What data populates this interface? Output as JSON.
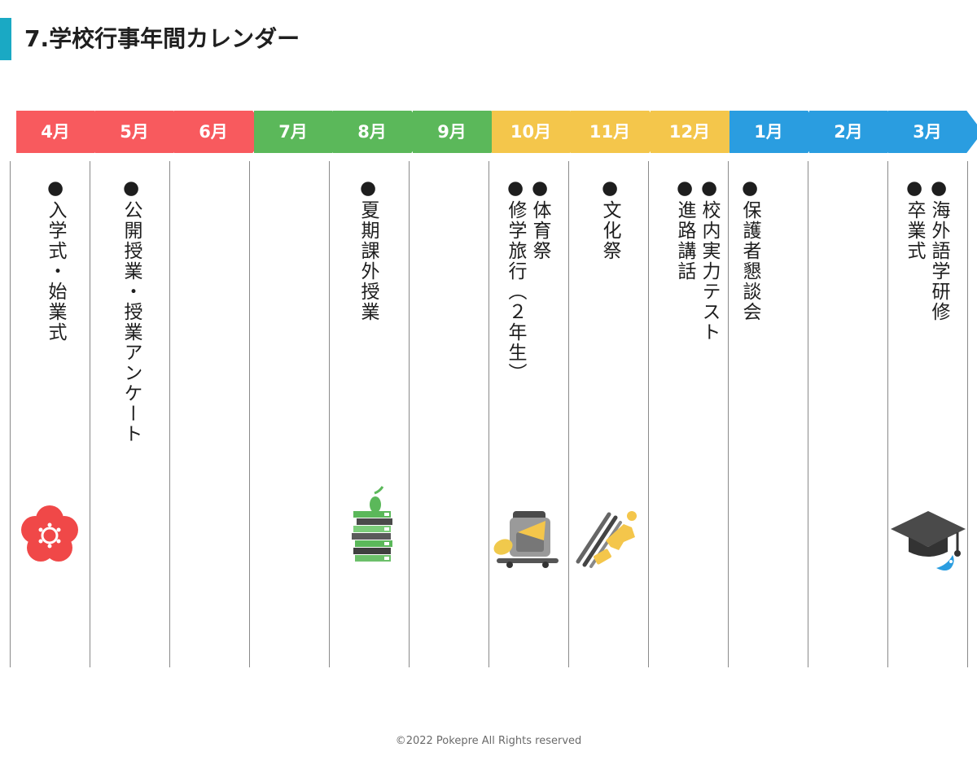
{
  "page": {
    "title": "7.学校行事年間カレンダー",
    "copyright": "©2022 Pokepre All Rights reserved"
  },
  "colors": {
    "accent_bar": "#1aa9c4",
    "spring": "#f85a5e",
    "summer": "#5bb85a",
    "autumn": "#f4c64b",
    "winter": "#2a9de0"
  },
  "months": [
    {
      "label": "4月",
      "color": "red"
    },
    {
      "label": "5月",
      "color": "red"
    },
    {
      "label": "6月",
      "color": "red"
    },
    {
      "label": "7月",
      "color": "green"
    },
    {
      "label": "8月",
      "color": "green"
    },
    {
      "label": "9月",
      "color": "green"
    },
    {
      "label": "10月",
      "color": "yellow"
    },
    {
      "label": "11月",
      "color": "yellow"
    },
    {
      "label": "12月",
      "color": "yellow"
    },
    {
      "label": "1月",
      "color": "blue"
    },
    {
      "label": "2月",
      "color": "blue"
    },
    {
      "label": "3月",
      "color": "blue"
    }
  ],
  "events": {
    "april": [
      "●入学式・始業式"
    ],
    "may": [
      "●公開授業・授業アンケート"
    ],
    "august": [
      "●夏期課外授業"
    ],
    "october": [
      "●体育祭",
      "●修学旅行（２年生）"
    ],
    "november": [
      "●文化祭"
    ],
    "december": [
      "●校内実力テスト",
      "●進路講話"
    ],
    "january": [
      "●保護者懇談会"
    ],
    "march": [
      "●海外語学研修",
      "●卒業式"
    ]
  },
  "icons": {
    "april": "plum-blossom-icon",
    "august": "books-apple-icon",
    "october": "backpack-travel-icon",
    "november": "paint-brushes-icon",
    "march": "graduation-cap-icon"
  }
}
